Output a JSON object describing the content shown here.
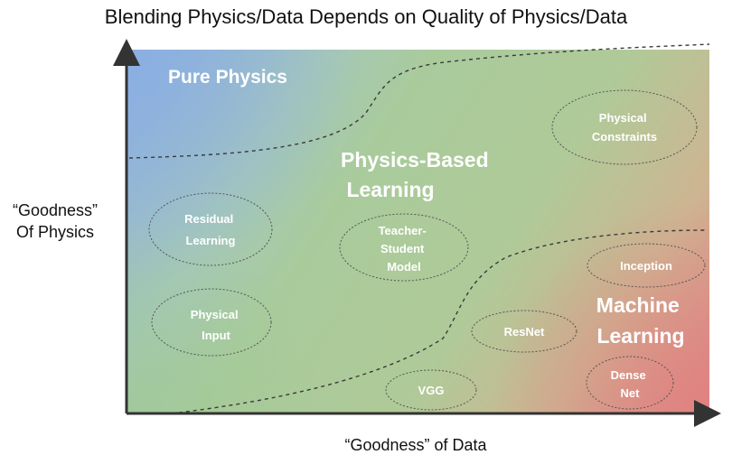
{
  "title": "Blending Physics/Data Depends on Quality of Physics/Data",
  "y_axis_label": [
    "“Goodness”",
    "Of Physics"
  ],
  "x_axis_label": "“Goodness” of Data",
  "regions": {
    "pure_physics": "Pure Physics",
    "physics_based_learning": [
      "Physics-Based",
      "Learning"
    ],
    "machine_learning": [
      "Machine",
      "Learning"
    ]
  },
  "methods": {
    "physical_constraints": [
      "Physical",
      "Constraints"
    ],
    "residual_learning": [
      "Residual",
      "Learning"
    ],
    "teacher_student_model": [
      "Teacher-",
      "Student",
      "Model"
    ],
    "physical_input": [
      "Physical",
      "Input"
    ],
    "inception": [
      "Inception"
    ],
    "resnet": [
      "ResNet"
    ],
    "vgg": [
      "VGG"
    ],
    "dense_net": [
      "Dense",
      "Net"
    ]
  },
  "colors": {
    "physics": "#8fb1e0",
    "blend": "#a9cb9c",
    "data": "#e08a88",
    "axis": "#333333",
    "boundary": "#3a3a3a"
  }
}
